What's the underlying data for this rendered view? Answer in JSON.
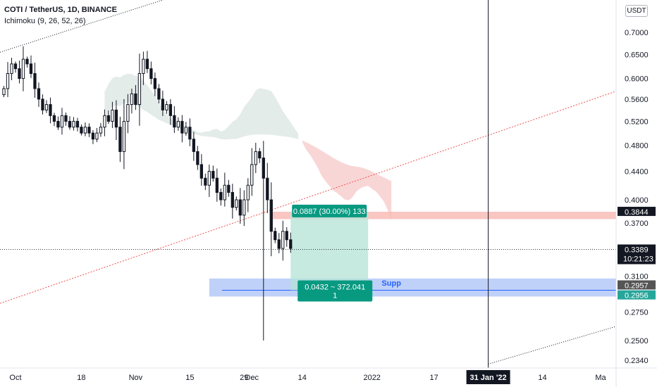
{
  "legend": {
    "symbol_line": "COTI / TetherUS, 1D, BINANCE",
    "indicator_line": "Ichimoku (9, 26, 52, 26)"
  },
  "currency_badge": "USDT",
  "colors": {
    "up": "#26a69a",
    "down": "#131722",
    "candle_fill_up": "#ffffff",
    "cloud_bull": "#e4ecea",
    "cloud_bear": "#f9d6d6",
    "target_zone": "#b3e3d6",
    "stop_zone": "#f7b8b3",
    "support_zone": "#a9c2f5",
    "support_label": "#2962ff",
    "teal_label_bg": "#089981",
    "trend_red": "#ef5350",
    "trend_dark": "#131722"
  },
  "chart_data": {
    "type": "candlestick",
    "title": "COTI / TetherUS, 1D, BINANCE",
    "ylabel": "USDT",
    "y_scale": "log",
    "ylim": [
      0.228,
      0.78
    ],
    "xlim": [
      "2021-09-27",
      "2022-03-05"
    ],
    "y_ticks": [
      "0.7000",
      "0.6500",
      "0.6000",
      "0.5600",
      "0.5200",
      "0.4800",
      "0.4400",
      "0.4000",
      "0.3700",
      "0.3100",
      "0.2750",
      "0.2500",
      "0.2340"
    ],
    "x_ticks": [
      {
        "label": "Oct",
        "date": "2021-10-01"
      },
      {
        "label": "18",
        "date": "2021-10-18"
      },
      {
        "label": "Nov",
        "date": "2021-11-01"
      },
      {
        "label": "15",
        "date": "2021-11-15"
      },
      {
        "label": "29",
        "date": "2021-11-29"
      },
      {
        "label": "Dec",
        "date": "2021-12-01"
      },
      {
        "label": "14",
        "date": "2021-12-14"
      },
      {
        "label": "2022",
        "date": "2022-01-01"
      },
      {
        "label": "17",
        "date": "2022-01-17"
      },
      {
        "label": "31 Jan '22",
        "date": "2022-01-31",
        "highlight": true
      },
      {
        "label": "14",
        "date": "2022-02-14"
      },
      {
        "label": "Ma",
        "date": "2022-03-01"
      }
    ],
    "candles_start": "2021-09-28",
    "close_series": [
      0.58,
      0.61,
      0.63,
      0.62,
      0.6,
      0.64,
      0.63,
      0.61,
      0.58,
      0.56,
      0.54,
      0.55,
      0.53,
      0.52,
      0.51,
      0.53,
      0.52,
      0.51,
      0.52,
      0.51,
      0.5,
      0.51,
      0.5,
      0.49,
      0.5,
      0.51,
      0.53,
      0.52,
      0.54,
      0.51,
      0.47,
      0.52,
      0.55,
      0.57,
      0.55,
      0.61,
      0.64,
      0.62,
      0.6,
      0.58,
      0.56,
      0.54,
      0.55,
      0.53,
      0.51,
      0.52,
      0.5,
      0.51,
      0.49,
      0.47,
      0.45,
      0.43,
      0.42,
      0.44,
      0.43,
      0.41,
      0.4,
      0.42,
      0.41,
      0.39,
      0.4,
      0.38,
      0.4,
      0.42,
      0.45,
      0.47,
      0.46,
      0.43,
      0.4,
      0.36,
      0.35,
      0.34,
      0.36,
      0.35,
      0.34
    ],
    "current_price": 0.3389,
    "countdown": "10:21:23",
    "price_labels": [
      {
        "price": 0.3844,
        "text": "0.3844",
        "style": "stop"
      },
      {
        "price": 0.3389,
        "text": "0.3389",
        "style": "current"
      },
      {
        "price": 0.2957,
        "text": "0.2957",
        "style": "grey"
      },
      {
        "price": 0.2956,
        "text": "0.2956",
        "style": "green"
      }
    ],
    "position_tool": {
      "entry": 0.2957,
      "target": 0.3844,
      "start": "2021-12-11",
      "end": "2021-12-31",
      "target_label": "0.0887 (30.00%) 133",
      "entry_label_line1": "0.0432 ~ 372.041",
      "entry_label_line2": "1"
    },
    "stop_zone": {
      "from": 0.375,
      "to": 0.3844,
      "start": "2021-12-06",
      "end": "2022-03-05"
    },
    "support_zone": {
      "from": 0.2895,
      "to": 0.3075,
      "start": "2021-11-20",
      "end": "2022-03-05",
      "label": "Supp",
      "line": 0.2957
    },
    "vertical_line": "2022-01-31"
  }
}
